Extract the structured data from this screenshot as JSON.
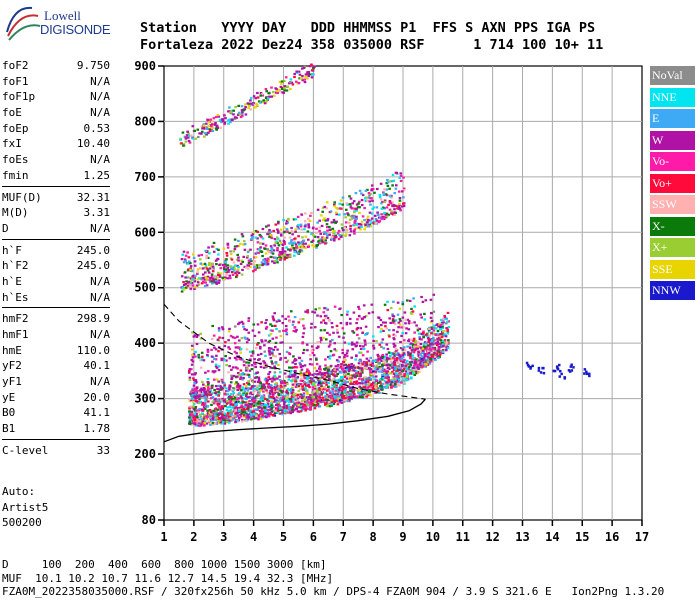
{
  "logo": {
    "line1": "Lowell",
    "line2": "DIGISONDE"
  },
  "header": {
    "line1": "Station   YYYY DAY   DDD HHMMSS P1  FFS S AXN PPS IGA PS",
    "line2": "Fortaleza 2022 Dez24 358 035000 RSF      1 714 100 10+ 11"
  },
  "params": {
    "group1": [
      {
        "name": "foF2",
        "value": "9.750"
      },
      {
        "name": "foF1",
        "value": "N/A"
      },
      {
        "name": "foF1p",
        "value": "N/A"
      },
      {
        "name": "foE",
        "value": "N/A"
      },
      {
        "name": "foEp",
        "value": "0.53"
      },
      {
        "name": "fxI",
        "value": "10.40"
      },
      {
        "name": "foEs",
        "value": "N/A"
      },
      {
        "name": "fmin",
        "value": "1.25"
      }
    ],
    "group2": [
      {
        "name": "MUF(D)",
        "value": "32.31"
      },
      {
        "name": "M(D)",
        "value": "3.31"
      },
      {
        "name": "D",
        "value": "N/A"
      }
    ],
    "group3": [
      {
        "name": "h`F",
        "value": "245.0"
      },
      {
        "name": "h`F2",
        "value": "245.0"
      },
      {
        "name": "h`E",
        "value": "N/A"
      },
      {
        "name": "h`Es",
        "value": "N/A"
      }
    ],
    "group4": [
      {
        "name": "hmF2",
        "value": "298.9"
      },
      {
        "name": "hmF1",
        "value": "N/A"
      },
      {
        "name": "hmE",
        "value": "110.0"
      },
      {
        "name": "yF2",
        "value": "40.1"
      },
      {
        "name": "yF1",
        "value": "N/A"
      },
      {
        "name": "yE",
        "value": "20.0"
      },
      {
        "name": "B0",
        "value": "41.1"
      },
      {
        "name": "B1",
        "value": "1.78"
      }
    ],
    "group5": [
      {
        "name": "C-level",
        "value": "33"
      }
    ]
  },
  "autoscale": {
    "line1": "Auto:",
    "line2": "Artist5",
    "line3": "500200"
  },
  "legend": [
    {
      "label": "NoVal",
      "color": "#8c8c8c"
    },
    {
      "label": "NNE",
      "color": "#00e5ef"
    },
    {
      "label": "E",
      "color": "#3ea9f5"
    },
    {
      "label": "W",
      "color": "#b012a6"
    },
    {
      "label": "Vo-",
      "color": "#ff1aa8"
    },
    {
      "label": "Vo+",
      "color": "#ff0a3a"
    },
    {
      "label": "SSW",
      "color": "#ffb0b0"
    },
    {
      "label": "X-",
      "color": "#0a7a0a"
    },
    {
      "label": "X+",
      "color": "#9acd32"
    },
    {
      "label": "SSE",
      "color": "#e8d400"
    },
    {
      "label": "NNW",
      "color": "#1a1acc"
    }
  ],
  "footer": {
    "line1": "D     100  200  400  600  800 1000 1500 3000 [km]",
    "line2": "MUF  10.1 10.2 10.7 11.6 12.7 14.5 19.4 32.3 [MHz]",
    "line3": "FZA0M_2022358035000.RSF / 320fx256h 50 kHz 5.0 km / DPS-4 FZA0M 904 / 3.9 S 321.6 E   Ion2Png 1.3.20"
  },
  "chart_data": {
    "type": "scatter",
    "xlabel": "",
    "ylabel": "",
    "xlim": [
      1,
      17
    ],
    "xticks": [
      1,
      2,
      3,
      4,
      5,
      6,
      7,
      8,
      9,
      10,
      11,
      12,
      13,
      14,
      15,
      16,
      17
    ],
    "y_regions": [
      {
        "range": [
          80,
          200
        ],
        "ticks": [
          80
        ]
      },
      {
        "range": [
          200,
          900
        ],
        "ticks": [
          200,
          300,
          400,
          500,
          600,
          700,
          800,
          900
        ]
      }
    ],
    "grid": true,
    "profile_curve": {
      "x": [
        1.0,
        1.5,
        2.5,
        3.5,
        4.5,
        5.5,
        6.5,
        7.5,
        8.5,
        9.2,
        9.6,
        9.75
      ],
      "y": [
        222,
        232,
        240,
        244,
        247,
        250,
        254,
        260,
        268,
        278,
        290,
        298.9
      ]
    },
    "profile_extrapolation": {
      "x": [
        1.0,
        1.5,
        2.5,
        3.5,
        4.5,
        5.5,
        6.5,
        7.5,
        8.5,
        9.2,
        9.75
      ],
      "y": [
        470,
        440,
        400,
        375,
        358,
        345,
        333,
        318,
        308,
        303,
        298.9
      ]
    },
    "series": [
      {
        "name": "O-trace F2",
        "x": [
          1.8,
          3,
          4,
          5,
          6,
          7,
          8,
          9,
          9.5,
          10,
          10.5
        ],
        "y": [
          262,
          268,
          275,
          285,
          295,
          305,
          320,
          340,
          360,
          380,
          400
        ]
      },
      {
        "name": "2nd hop",
        "x": [
          1.5,
          2,
          3,
          4,
          5,
          6,
          7,
          8,
          9
        ],
        "y": [
          500,
          505,
          520,
          540,
          560,
          580,
          600,
          620,
          650
        ]
      },
      {
        "name": "3rd hop",
        "x": [
          1.5,
          2,
          3,
          4,
          5,
          6
        ],
        "y": [
          760,
          775,
          800,
          830,
          860,
          890
        ]
      },
      {
        "name": "NNW echoes",
        "x": [
          13.2,
          13.6,
          14.1,
          14.3,
          14.6,
          15.1
        ],
        "y": [
          362,
          352,
          356,
          345,
          358,
          350
        ]
      }
    ]
  }
}
